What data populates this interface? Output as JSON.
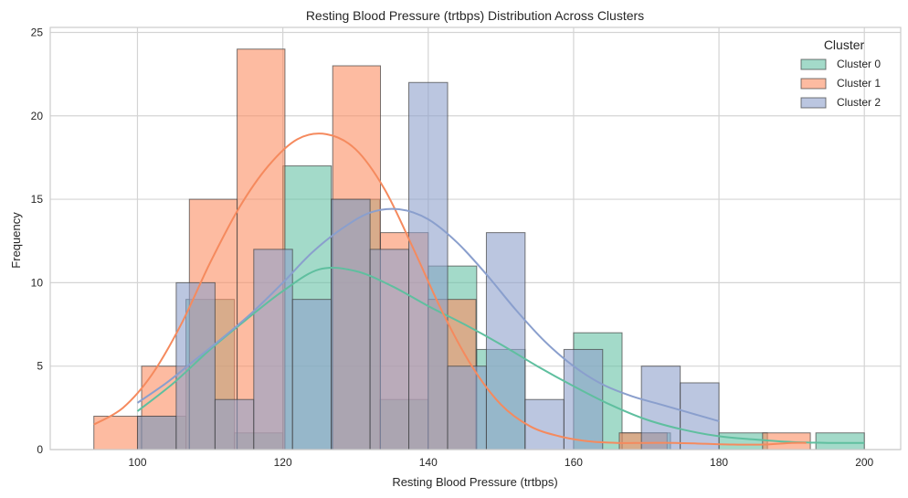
{
  "chart_data": {
    "type": "histogram",
    "title": "Resting Blood Pressure (trtbps) Distribution Across Clusters",
    "xlabel": "Resting Blood Pressure (trtbps)",
    "ylabel": "Frequency",
    "xlim": [
      88,
      205
    ],
    "ylim": [
      0,
      25.3
    ],
    "xticks": [
      100,
      120,
      140,
      160,
      180,
      200
    ],
    "yticks": [
      0,
      5,
      10,
      15,
      20,
      25
    ],
    "grid": true,
    "legend": {
      "title": "Cluster",
      "position": "top-right"
    },
    "series": [
      {
        "name": "Cluster 0",
        "color": "#66c2a5",
        "kde_color": "#5fbf9f",
        "bins": [
          [
            100,
            106.67,
            2
          ],
          [
            106.67,
            113.33,
            9
          ],
          [
            113.33,
            120,
            1
          ],
          [
            120,
            126.67,
            17
          ],
          [
            126.67,
            133.33,
            15
          ],
          [
            133.33,
            140,
            3
          ],
          [
            140,
            146.67,
            11
          ],
          [
            146.67,
            153.33,
            6
          ],
          [
            153.33,
            160,
            0
          ],
          [
            160,
            166.67,
            7
          ],
          [
            166.67,
            173.33,
            1
          ],
          [
            173.33,
            180,
            0
          ],
          [
            180,
            186.67,
            1
          ],
          [
            186.67,
            193.33,
            0
          ],
          [
            193.33,
            200,
            1
          ]
        ],
        "kde": [
          [
            100,
            2.3
          ],
          [
            105,
            4.0
          ],
          [
            110,
            6.0
          ],
          [
            115,
            7.8
          ],
          [
            120,
            9.5
          ],
          [
            125,
            10.8
          ],
          [
            130,
            10.7
          ],
          [
            135,
            9.8
          ],
          [
            140,
            8.6
          ],
          [
            145,
            7.5
          ],
          [
            150,
            6.3
          ],
          [
            155,
            5.0
          ],
          [
            160,
            3.8
          ],
          [
            165,
            2.7
          ],
          [
            170,
            1.8
          ],
          [
            175,
            1.2
          ],
          [
            180,
            0.8
          ],
          [
            185,
            0.6
          ],
          [
            190,
            0.45
          ],
          [
            195,
            0.4
          ],
          [
            200,
            0.4
          ]
        ]
      },
      {
        "name": "Cluster 1",
        "color": "#fc8d62",
        "kde_color": "#f58a5e",
        "bins": [
          [
            94,
            100.57,
            2
          ],
          [
            100.57,
            107.14,
            5
          ],
          [
            107.14,
            113.71,
            15
          ],
          [
            113.71,
            120.29,
            24
          ],
          [
            120.29,
            126.86,
            0
          ],
          [
            126.86,
            133.43,
            23
          ],
          [
            133.43,
            140,
            13
          ],
          [
            140,
            146.57,
            9
          ],
          [
            146.57,
            153.14,
            0
          ],
          [
            153.14,
            159.71,
            0
          ],
          [
            159.71,
            166.29,
            0
          ],
          [
            166.29,
            172.86,
            1
          ],
          [
            172.86,
            179.43,
            0
          ],
          [
            179.43,
            186,
            0
          ],
          [
            186,
            192.57,
            1
          ]
        ],
        "kde": [
          [
            94,
            1.5
          ],
          [
            98,
            2.5
          ],
          [
            102,
            4.5
          ],
          [
            106,
            7.5
          ],
          [
            110,
            11.2
          ],
          [
            114,
            14.5
          ],
          [
            118,
            17.0
          ],
          [
            122,
            18.6
          ],
          [
            126,
            18.9
          ],
          [
            130,
            18.0
          ],
          [
            134,
            15.6
          ],
          [
            138,
            12.0
          ],
          [
            142,
            8.2
          ],
          [
            146,
            5.0
          ],
          [
            150,
            2.7
          ],
          [
            154,
            1.4
          ],
          [
            158,
            0.8
          ],
          [
            162,
            0.5
          ],
          [
            166,
            0.4
          ],
          [
            170,
            0.4
          ],
          [
            174,
            0.4
          ],
          [
            178,
            0.35
          ],
          [
            182,
            0.3
          ],
          [
            186,
            0.3
          ],
          [
            190,
            0.4
          ],
          [
            192,
            0.4
          ]
        ]
      },
      {
        "name": "Cluster 2",
        "color": "#8da0cb",
        "kde_color": "#8a9fcd",
        "bins": [
          [
            100,
            105.33,
            2
          ],
          [
            105.33,
            110.67,
            10
          ],
          [
            110.67,
            116,
            3
          ],
          [
            116,
            121.33,
            12
          ],
          [
            121.33,
            126.67,
            9
          ],
          [
            126.67,
            132,
            15
          ],
          [
            132,
            137.33,
            12
          ],
          [
            137.33,
            142.67,
            22
          ],
          [
            142.67,
            148,
            5
          ],
          [
            148,
            153.33,
            13
          ],
          [
            153.33,
            158.67,
            3
          ],
          [
            158.67,
            164,
            6
          ],
          [
            164,
            169.33,
            0
          ],
          [
            169.33,
            174.67,
            5
          ],
          [
            174.67,
            180,
            4
          ]
        ],
        "kde": [
          [
            100,
            2.8
          ],
          [
            104,
            4.0
          ],
          [
            108,
            5.4
          ],
          [
            112,
            6.8
          ],
          [
            116,
            8.3
          ],
          [
            120,
            10.0
          ],
          [
            124,
            11.8
          ],
          [
            128,
            13.2
          ],
          [
            132,
            14.2
          ],
          [
            136,
            14.4
          ],
          [
            140,
            13.8
          ],
          [
            144,
            12.4
          ],
          [
            148,
            10.5
          ],
          [
            152,
            8.4
          ],
          [
            156,
            6.5
          ],
          [
            160,
            5.0
          ],
          [
            164,
            3.9
          ],
          [
            168,
            3.2
          ],
          [
            172,
            2.7
          ],
          [
            176,
            2.2
          ],
          [
            180,
            1.7
          ]
        ]
      }
    ]
  }
}
